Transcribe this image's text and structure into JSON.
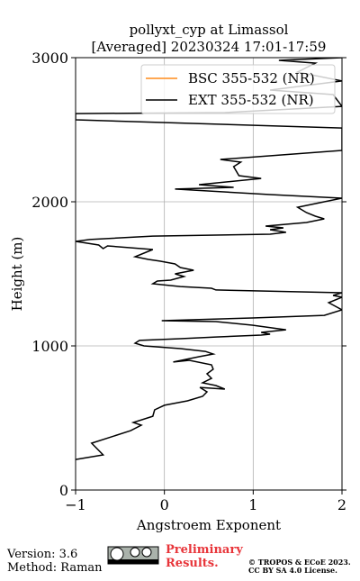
{
  "chart_data": {
    "type": "line",
    "title": "pollyxt_cyp at Limassol",
    "subtitle": "[Averaged] 20230324 17:01-17:59",
    "x_label": "Angstroem Exponent",
    "y_label": "Height (m)",
    "xlim": [
      -1,
      2
    ],
    "ylim": [
      0,
      3000
    ],
    "xticks": [
      {
        "value": -1,
        "label": "−1"
      },
      0,
      1,
      2
    ],
    "yticks": [
      0,
      1000,
      2000,
      3000
    ],
    "grid": true,
    "legend": "upper right",
    "series": [
      {
        "name": "BSC 355-532 (NR)",
        "color": "#ff8c1a",
        "x": [],
        "y": []
      },
      {
        "name": "EXT 355-532 (NR)",
        "color": "#000000",
        "x": [
          -1.0,
          -0.69,
          -0.82,
          -0.38,
          -0.26,
          -0.35,
          -0.13,
          -0.11,
          0.0,
          0.26,
          0.43,
          0.48,
          0.4,
          0.68,
          0.58,
          0.43,
          0.53,
          0.48,
          0.55,
          0.53,
          0.28,
          0.1,
          0.39,
          0.55,
          0.46,
          0.18,
          -0.23,
          -0.33,
          -0.28,
          0.18,
          0.58,
          1.09,
          1.19,
          1.09,
          1.37,
          0.99,
          0.58,
          -0.03,
          0.99,
          1.8,
          2.0,
          1.85,
          2.0,
          1.9,
          2.0,
          0.58,
          0.53,
          0.18,
          -0.13,
          -0.08,
          0.07,
          0.22,
          0.12,
          0.33,
          0.18,
          0.12,
          -0.05,
          -0.18,
          -0.33,
          -0.13,
          -0.64,
          -0.69,
          -0.74,
          -1.0,
          -0.84,
          -0.13,
          1.19,
          1.37,
          1.19,
          1.34,
          1.14,
          1.6,
          1.8,
          1.7,
          1.6,
          1.5,
          1.8,
          2.0,
          1.19,
          0.12,
          0.78,
          0.39,
          1.09,
          0.84,
          0.78,
          0.86,
          0.63,
          2.0,
          2.0,
          -1.0,
          -1.0,
          0.68,
          2.0,
          1.9,
          1.19,
          2.0,
          1.5,
          1.7,
          1.29,
          2.0
        ],
        "y": [
          212,
          244,
          325,
          412,
          450,
          469,
          512,
          556,
          588,
          619,
          650,
          681,
          712,
          700,
          725,
          744,
          775,
          806,
          838,
          869,
          900,
          888,
          925,
          944,
          962,
          981,
          1000,
          1019,
          1038,
          1050,
          1062,
          1075,
          1081,
          1094,
          1112,
          1144,
          1169,
          1175,
          1194,
          1212,
          1250,
          1300,
          1338,
          1350,
          1369,
          1388,
          1400,
          1412,
          1431,
          1450,
          1456,
          1481,
          1500,
          1525,
          1544,
          1569,
          1588,
          1600,
          1619,
          1669,
          1694,
          1675,
          1700,
          1725,
          1738,
          1762,
          1775,
          1788,
          1806,
          1819,
          1831,
          1856,
          1881,
          1900,
          1925,
          1962,
          2000,
          2025,
          2050,
          2088,
          2100,
          2119,
          2162,
          2181,
          2244,
          2275,
          2294,
          2356,
          2512,
          2569,
          2612,
          2619,
          2662,
          2744,
          2775,
          2838,
          2900,
          2962,
          2981,
          3000
        ]
      }
    ],
    "footer": {
      "version": "Version: 3.6",
      "method": "Method: Raman",
      "status": "Preliminary Results.",
      "license": "© TROPOS & ECoE 2023.",
      "license2": "CC BY SA 4.0 License."
    }
  }
}
